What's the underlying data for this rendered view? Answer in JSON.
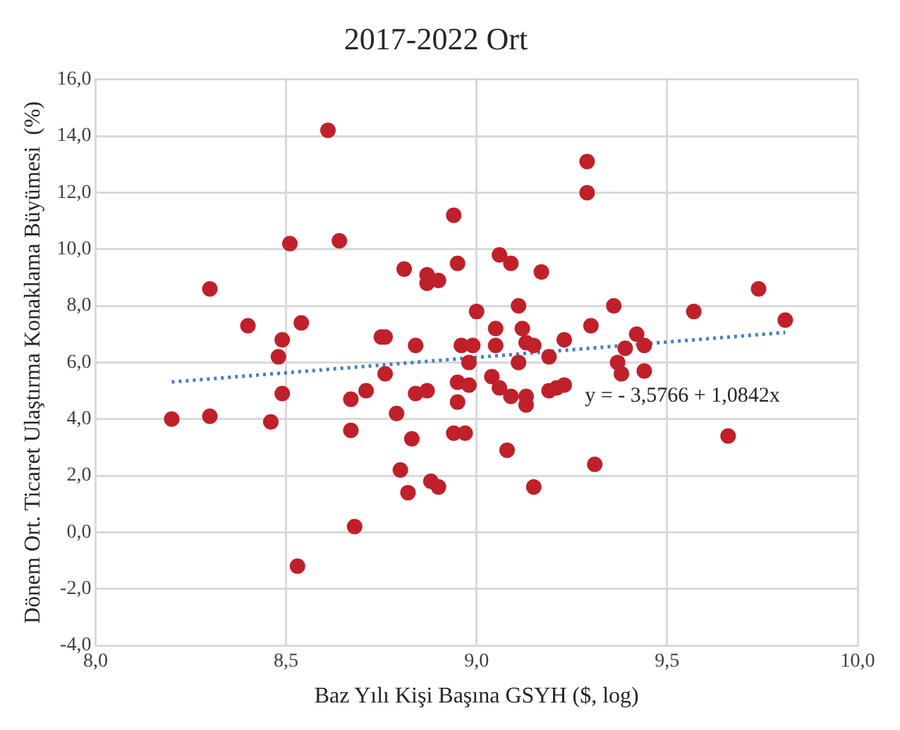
{
  "chart_data": {
    "type": "scatter",
    "title": "2017-2022 Ort",
    "xlabel": "Baz Yılı Kişi Başına GSYH ($, log)",
    "ylabel": "Dönem Ort. Ticaret Ulaştırma Konaklama Büyümesi  (%)",
    "xlim": [
      8.0,
      10.0
    ],
    "xticks": [
      {
        "value": 8.0,
        "label": "8,0"
      },
      {
        "value": 8.5,
        "label": "8,5"
      },
      {
        "value": 9.0,
        "label": "9,0"
      },
      {
        "value": 9.5,
        "label": "9,5"
      },
      {
        "value": 10.0,
        "label": "10,0"
      }
    ],
    "ylim": [
      -4,
      16
    ],
    "yticks": [
      {
        "value": -4,
        "label": "-4,0"
      },
      {
        "value": -2,
        "label": "-2,0"
      },
      {
        "value": 0,
        "label": "0,0"
      },
      {
        "value": 2,
        "label": "2,0"
      },
      {
        "value": 4,
        "label": "4,0"
      },
      {
        "value": 6,
        "label": "6,0"
      },
      {
        "value": 8,
        "label": "8,0"
      },
      {
        "value": 10,
        "label": "10,0"
      },
      {
        "value": 12,
        "label": "12,0"
      },
      {
        "value": 14,
        "label": "14,0"
      },
      {
        "value": 16,
        "label": "16,0"
      }
    ],
    "grid": true,
    "marker": "circle",
    "series": [
      {
        "color": "#c0202a",
        "x": [
          8.2,
          8.3,
          8.3,
          8.4,
          8.46,
          8.48,
          8.49,
          8.49,
          8.51,
          8.54,
          8.53,
          8.61,
          8.64,
          8.67,
          8.67,
          8.68,
          8.71,
          8.76,
          8.79,
          8.8,
          8.82,
          8.83,
          8.84,
          8.87,
          8.88,
          8.9,
          8.95,
          8.94,
          8.97,
          8.95,
          8.98,
          8.98,
          8.94,
          8.81,
          8.87,
          8.87,
          8.9,
          8.95,
          8.75,
          8.76,
          8.84,
          8.96,
          8.99,
          9.0,
          9.29,
          9.29,
          9.06,
          9.09,
          9.17,
          9.11,
          9.36,
          9.74,
          9.57,
          9.81,
          9.05,
          9.12,
          9.3,
          9.05,
          9.13,
          9.15,
          9.23,
          9.19,
          9.42,
          9.39,
          9.44,
          9.11,
          9.37,
          9.38,
          9.44,
          9.04,
          9.06,
          9.09,
          9.13,
          9.13,
          9.19,
          9.21,
          9.23,
          9.08,
          9.31,
          9.15,
          9.66
        ],
        "values": [
          4.0,
          4.1,
          8.6,
          7.3,
          3.9,
          6.2,
          6.8,
          4.9,
          10.2,
          7.4,
          -1.2,
          14.2,
          10.3,
          4.7,
          3.6,
          0.2,
          5.0,
          5.6,
          4.2,
          2.2,
          1.4,
          3.3,
          4.9,
          5.0,
          1.8,
          1.6,
          5.3,
          3.5,
          3.5,
          4.6,
          6.0,
          5.2,
          11.2,
          9.3,
          9.1,
          8.8,
          8.9,
          9.5,
          6.9,
          6.9,
          6.6,
          6.6,
          6.6,
          7.8,
          13.1,
          12.0,
          9.8,
          9.5,
          9.2,
          8.0,
          8.0,
          8.6,
          7.8,
          7.5,
          7.2,
          7.2,
          7.3,
          6.6,
          6.7,
          6.6,
          6.8,
          6.2,
          7.0,
          6.5,
          6.6,
          6.0,
          6.0,
          5.6,
          5.7,
          5.5,
          5.1,
          4.8,
          4.8,
          4.5,
          5.0,
          5.1,
          5.2,
          2.9,
          2.4,
          1.6,
          3.4
        ]
      },
      {
        "type": "line",
        "color": "#4a7ebf",
        "line_style": "dotted",
        "marker": "none",
        "x": [
          8.2,
          9.81
        ],
        "values": [
          5.31,
          7.06
        ]
      }
    ],
    "annotations": [
      "y = - 3,5766 + 1,0842x"
    ]
  }
}
